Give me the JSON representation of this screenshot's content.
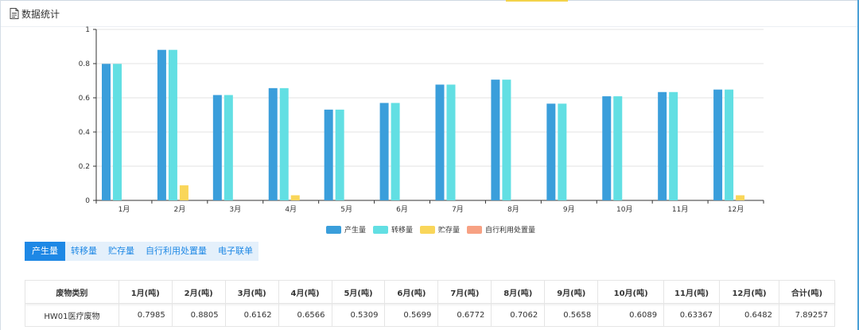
{
  "header": {
    "title": "数据统计",
    "icon": "document-icon"
  },
  "colors": {
    "produce": "#3a9edb",
    "transfer": "#62dfe3",
    "storage": "#f9d65a",
    "selfuse": "#f7a183",
    "tab_active": "#1e88e5",
    "tab_bg": "#e4f0fb"
  },
  "chart_data": {
    "type": "bar",
    "categories": [
      "1月",
      "2月",
      "3月",
      "4月",
      "5月",
      "6月",
      "7月",
      "8月",
      "9月",
      "10月",
      "11月",
      "12月"
    ],
    "series": [
      {
        "name": "产生量",
        "values": [
          0.7985,
          0.8805,
          0.6162,
          0.6566,
          0.5309,
          0.5699,
          0.6772,
          0.7062,
          0.5658,
          0.6089,
          0.63367,
          0.6482
        ]
      },
      {
        "name": "转移量",
        "values": [
          0.7985,
          0.8805,
          0.6162,
          0.6566,
          0.5309,
          0.5699,
          0.6772,
          0.7062,
          0.5658,
          0.6089,
          0.63367,
          0.6482
        ]
      },
      {
        "name": "贮存量",
        "values": [
          0,
          0.088,
          0,
          0.03,
          0,
          0,
          0,
          0,
          0,
          0,
          0,
          0.03
        ]
      },
      {
        "name": "自行利用处置量",
        "values": [
          0,
          0,
          0,
          0,
          0,
          0,
          0,
          0,
          0,
          0,
          0,
          0
        ]
      }
    ],
    "yticks": [
      "0",
      "0.2",
      "0.4",
      "0.6",
      "0.8",
      "1"
    ],
    "ylim": [
      0,
      1
    ],
    "grid": true,
    "legend": "bottom-center"
  },
  "tabs": [
    "产生量",
    "转移量",
    "贮存量",
    "自行利用处置量",
    "电子联单"
  ],
  "table": {
    "headers": [
      "废物类别",
      "1月(吨)",
      "2月(吨)",
      "3月(吨)",
      "4月(吨)",
      "5月(吨)",
      "6月(吨)",
      "7月(吨)",
      "8月(吨)",
      "9月(吨)",
      "10月(吨)",
      "11月(吨)",
      "12月(吨)",
      "合计(吨)"
    ],
    "rows": [
      [
        "HW01医疗废物",
        "0.7985",
        "0.8805",
        "0.6162",
        "0.6566",
        "0.5309",
        "0.5699",
        "0.6772",
        "0.7062",
        "0.5658",
        "0.6089",
        "0.63367",
        "0.6482",
        "7.89257"
      ]
    ]
  }
}
